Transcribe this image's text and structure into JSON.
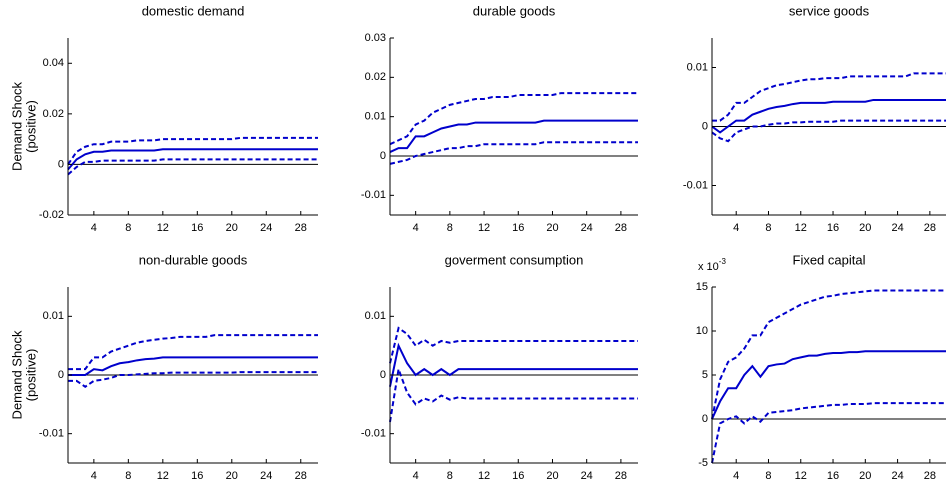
{
  "chart_data": [
    {
      "type": "line",
      "title": "domestic demand",
      "ylabel": [
        "Demand Shock",
        "(positive)"
      ],
      "x": [
        1,
        2,
        3,
        4,
        5,
        6,
        7,
        8,
        9,
        10,
        11,
        12,
        13,
        14,
        15,
        16,
        17,
        18,
        19,
        20,
        21,
        22,
        23,
        24,
        25,
        26,
        27,
        28,
        29,
        30
      ],
      "xlim": [
        1,
        30
      ],
      "xticks": [
        4,
        8,
        12,
        16,
        20,
        24,
        28
      ],
      "ylim": [
        -0.02,
        0.05
      ],
      "yticks": [
        -0.02,
        0,
        0.02,
        0.04
      ],
      "series": [
        {
          "color": "#0000cc",
          "style": "solid",
          "values": [
            -0.002,
            0.002,
            0.004,
            0.005,
            0.005,
            0.0055,
            0.0055,
            0.0055,
            0.0055,
            0.0055,
            0.0055,
            0.006,
            0.006,
            0.006,
            0.006,
            0.006,
            0.006,
            0.006,
            0.006,
            0.006,
            0.006,
            0.006,
            0.006,
            0.006,
            0.006,
            0.006,
            0.006,
            0.006,
            0.006,
            0.006
          ]
        },
        {
          "color": "#0000cc",
          "style": "dashed",
          "values": [
            0,
            0.005,
            0.007,
            0.008,
            0.008,
            0.009,
            0.009,
            0.009,
            0.0095,
            0.0095,
            0.0095,
            0.01,
            0.01,
            0.01,
            0.01,
            0.01,
            0.01,
            0.01,
            0.01,
            0.01,
            0.0105,
            0.0105,
            0.0105,
            0.0105,
            0.0105,
            0.0105,
            0.0105,
            0.0105,
            0.0105,
            0.0105
          ]
        },
        {
          "color": "#0000cc",
          "style": "dashed",
          "values": [
            -0.004,
            -0.001,
            0.001,
            0.001,
            0.0015,
            0.0015,
            0.0015,
            0.0015,
            0.0015,
            0.0015,
            0.0015,
            0.002,
            0.002,
            0.002,
            0.002,
            0.002,
            0.002,
            0.002,
            0.002,
            0.002,
            0.002,
            0.002,
            0.002,
            0.002,
            0.002,
            0.002,
            0.002,
            0.002,
            0.002,
            0.002
          ]
        }
      ]
    },
    {
      "type": "line",
      "title": "durable goods",
      "x": [
        1,
        2,
        3,
        4,
        5,
        6,
        7,
        8,
        9,
        10,
        11,
        12,
        13,
        14,
        15,
        16,
        17,
        18,
        19,
        20,
        21,
        22,
        23,
        24,
        25,
        26,
        27,
        28,
        29,
        30
      ],
      "xlim": [
        1,
        30
      ],
      "xticks": [
        4,
        8,
        12,
        16,
        20,
        24,
        28
      ],
      "ylim": [
        -0.015,
        0.03
      ],
      "yticks": [
        -0.01,
        0,
        0.01,
        0.02,
        0.03
      ],
      "series": [
        {
          "color": "#0000cc",
          "style": "solid",
          "values": [
            0.001,
            0.002,
            0.002,
            0.005,
            0.005,
            0.006,
            0.007,
            0.0075,
            0.008,
            0.008,
            0.0085,
            0.0085,
            0.0085,
            0.0085,
            0.0085,
            0.0085,
            0.0085,
            0.0085,
            0.009,
            0.009,
            0.009,
            0.009,
            0.009,
            0.009,
            0.009,
            0.009,
            0.009,
            0.009,
            0.009,
            0.009
          ]
        },
        {
          "color": "#0000cc",
          "style": "dashed",
          "values": [
            0.003,
            0.004,
            0.005,
            0.008,
            0.009,
            0.011,
            0.012,
            0.013,
            0.0135,
            0.014,
            0.0145,
            0.0145,
            0.015,
            0.015,
            0.015,
            0.0155,
            0.0155,
            0.0155,
            0.0155,
            0.0155,
            0.016,
            0.016,
            0.016,
            0.016,
            0.016,
            0.016,
            0.016,
            0.016,
            0.016,
            0.016
          ]
        },
        {
          "color": "#0000cc",
          "style": "dashed",
          "values": [
            -0.002,
            -0.0015,
            -0.001,
            0,
            0.0005,
            0.001,
            0.0015,
            0.002,
            0.002,
            0.0025,
            0.0025,
            0.003,
            0.003,
            0.003,
            0.003,
            0.003,
            0.003,
            0.003,
            0.0035,
            0.0035,
            0.0035,
            0.0035,
            0.0035,
            0.0035,
            0.0035,
            0.0035,
            0.0035,
            0.0035,
            0.0035,
            0.0035
          ]
        }
      ]
    },
    {
      "type": "line",
      "title": "service goods",
      "x": [
        1,
        2,
        3,
        4,
        5,
        6,
        7,
        8,
        9,
        10,
        11,
        12,
        13,
        14,
        15,
        16,
        17,
        18,
        19,
        20,
        21,
        22,
        23,
        24,
        25,
        26,
        27,
        28,
        29,
        30
      ],
      "xlim": [
        1,
        30
      ],
      "xticks": [
        4,
        8,
        12,
        16,
        20,
        24,
        28
      ],
      "ylim": [
        -0.015,
        0.015
      ],
      "yticks": [
        -0.01,
        0,
        0.01
      ],
      "series": [
        {
          "color": "#0000cc",
          "style": "solid",
          "values": [
            0,
            -0.001,
            0,
            0.001,
            0.001,
            0.002,
            0.0025,
            0.003,
            0.0033,
            0.0035,
            0.0038,
            0.004,
            0.004,
            0.004,
            0.004,
            0.0042,
            0.0042,
            0.0042,
            0.0042,
            0.0042,
            0.0045,
            0.0045,
            0.0045,
            0.0045,
            0.0045,
            0.0045,
            0.0045,
            0.0045,
            0.0045,
            0.0045
          ]
        },
        {
          "color": "#0000cc",
          "style": "dashed",
          "values": [
            0.001,
            0.001,
            0.002,
            0.004,
            0.004,
            0.005,
            0.006,
            0.0065,
            0.007,
            0.0072,
            0.0075,
            0.0078,
            0.008,
            0.008,
            0.0082,
            0.0082,
            0.0082,
            0.0085,
            0.0085,
            0.0085,
            0.0085,
            0.0085,
            0.0085,
            0.0085,
            0.0085,
            0.009,
            0.009,
            0.009,
            0.009,
            0.009
          ]
        },
        {
          "color": "#0000cc",
          "style": "dashed",
          "values": [
            -0.001,
            -0.002,
            -0.0025,
            -0.001,
            -0.0005,
            0,
            0,
            0.0003,
            0.0005,
            0.0005,
            0.0007,
            0.0007,
            0.0008,
            0.0008,
            0.0008,
            0.0008,
            0.001,
            0.001,
            0.001,
            0.001,
            0.001,
            0.001,
            0.001,
            0.001,
            0.001,
            0.001,
            0.001,
            0.001,
            0.001,
            0.001
          ]
        }
      ]
    },
    {
      "type": "line",
      "title": "non-durable goods",
      "ylabel": [
        "Demand Shock",
        "(positive)"
      ],
      "x": [
        1,
        2,
        3,
        4,
        5,
        6,
        7,
        8,
        9,
        10,
        11,
        12,
        13,
        14,
        15,
        16,
        17,
        18,
        19,
        20,
        21,
        22,
        23,
        24,
        25,
        26,
        27,
        28,
        29,
        30
      ],
      "xlim": [
        1,
        30
      ],
      "xticks": [
        4,
        8,
        12,
        16,
        20,
        24,
        28
      ],
      "ylim": [
        -0.015,
        0.015
      ],
      "yticks": [
        -0.01,
        0,
        0.01
      ],
      "series": [
        {
          "color": "#0000cc",
          "style": "solid",
          "values": [
            0,
            0,
            0,
            0.001,
            0.0008,
            0.0015,
            0.002,
            0.0022,
            0.0025,
            0.0027,
            0.0028,
            0.003,
            0.003,
            0.003,
            0.003,
            0.003,
            0.003,
            0.003,
            0.003,
            0.003,
            0.003,
            0.003,
            0.003,
            0.003,
            0.003,
            0.003,
            0.003,
            0.003,
            0.003,
            0.003
          ]
        },
        {
          "color": "#0000cc",
          "style": "dashed",
          "values": [
            0.001,
            0.001,
            0.001,
            0.003,
            0.003,
            0.004,
            0.0045,
            0.005,
            0.0055,
            0.0058,
            0.006,
            0.0062,
            0.0063,
            0.0065,
            0.0065,
            0.0065,
            0.0065,
            0.0068,
            0.0068,
            0.0068,
            0.0068,
            0.0068,
            0.0068,
            0.0068,
            0.0068,
            0.0068,
            0.0068,
            0.0068,
            0.0068,
            0.0068
          ]
        },
        {
          "color": "#0000cc",
          "style": "dashed",
          "values": [
            -0.001,
            -0.001,
            -0.002,
            -0.001,
            -0.0008,
            -0.0005,
            0,
            0,
            0.0001,
            0.0002,
            0.0003,
            0.0003,
            0.0004,
            0.0004,
            0.0004,
            0.0004,
            0.0004,
            0.0004,
            0.0004,
            0.0004,
            0.0005,
            0.0005,
            0.0005,
            0.0005,
            0.0005,
            0.0005,
            0.0005,
            0.0005,
            0.0005,
            0.0005
          ]
        }
      ]
    },
    {
      "type": "line",
      "title": "goverment consumption",
      "x": [
        1,
        2,
        3,
        4,
        5,
        6,
        7,
        8,
        9,
        10,
        11,
        12,
        13,
        14,
        15,
        16,
        17,
        18,
        19,
        20,
        21,
        22,
        23,
        24,
        25,
        26,
        27,
        28,
        29,
        30
      ],
      "xlim": [
        1,
        30
      ],
      "xticks": [
        4,
        8,
        12,
        16,
        20,
        24,
        28
      ],
      "ylim": [
        -0.015,
        0.015
      ],
      "yticks": [
        -0.01,
        0,
        0.01
      ],
      "series": [
        {
          "color": "#0000cc",
          "style": "solid",
          "values": [
            -0.002,
            0.005,
            0.002,
            0,
            0.001,
            0,
            0.001,
            0,
            0.001,
            0.001,
            0.001,
            0.001,
            0.001,
            0.001,
            0.001,
            0.001,
            0.001,
            0.001,
            0.001,
            0.001,
            0.001,
            0.001,
            0.001,
            0.001,
            0.001,
            0.001,
            0.001,
            0.001,
            0.001,
            0.001
          ]
        },
        {
          "color": "#0000cc",
          "style": "dashed",
          "values": [
            0.002,
            0.008,
            0.007,
            0.005,
            0.006,
            0.005,
            0.0058,
            0.0055,
            0.0058,
            0.0058,
            0.0058,
            0.0058,
            0.0058,
            0.0058,
            0.0058,
            0.0058,
            0.0058,
            0.0058,
            0.0058,
            0.0058,
            0.0058,
            0.0058,
            0.0058,
            0.0058,
            0.0058,
            0.0058,
            0.0058,
            0.0058,
            0.0058,
            0.0058
          ]
        },
        {
          "color": "#0000cc",
          "style": "dashed",
          "values": [
            -0.008,
            0.001,
            -0.003,
            -0.005,
            -0.004,
            -0.0045,
            -0.0035,
            -0.0042,
            -0.0038,
            -0.004,
            -0.004,
            -0.004,
            -0.004,
            -0.004,
            -0.004,
            -0.004,
            -0.004,
            -0.004,
            -0.004,
            -0.004,
            -0.004,
            -0.004,
            -0.004,
            -0.004,
            -0.004,
            -0.004,
            -0.004,
            -0.004,
            -0.004,
            -0.004
          ]
        }
      ]
    },
    {
      "type": "line",
      "title": "Fixed capital",
      "y_multiplier": "x 10",
      "y_multiplier_exponent": "-3",
      "x": [
        1,
        2,
        3,
        4,
        5,
        6,
        7,
        8,
        9,
        10,
        11,
        12,
        13,
        14,
        15,
        16,
        17,
        18,
        19,
        20,
        21,
        22,
        23,
        24,
        25,
        26,
        27,
        28,
        29,
        30
      ],
      "xlim": [
        1,
        30
      ],
      "xticks": [
        4,
        8,
        12,
        16,
        20,
        24,
        28
      ],
      "ylim": [
        -5,
        15
      ],
      "yticks": [
        -5,
        0,
        5,
        10,
        15
      ],
      "series": [
        {
          "color": "#0000cc",
          "style": "solid",
          "values": [
            0,
            2,
            3.5,
            3.5,
            5,
            6,
            4.8,
            6,
            6.2,
            6.3,
            6.8,
            7,
            7.2,
            7.2,
            7.4,
            7.5,
            7.5,
            7.6,
            7.6,
            7.7,
            7.7,
            7.7,
            7.7,
            7.7,
            7.7,
            7.7,
            7.7,
            7.7,
            7.7,
            7.7
          ]
        },
        {
          "color": "#0000cc",
          "style": "dashed",
          "values": [
            0,
            4.5,
            6.5,
            7,
            8,
            9.5,
            9.5,
            11,
            11.5,
            12,
            12.5,
            13,
            13.3,
            13.6,
            13.9,
            14,
            14.2,
            14.3,
            14.4,
            14.5,
            14.6,
            14.6,
            14.6,
            14.6,
            14.6,
            14.6,
            14.6,
            14.6,
            14.6,
            14.6
          ]
        },
        {
          "color": "#0000cc",
          "style": "dashed",
          "values": [
            -5,
            -0.5,
            0,
            0.3,
            -0.5,
            0.3,
            -0.3,
            0.7,
            0.8,
            0.9,
            1,
            1.2,
            1.3,
            1.4,
            1.5,
            1.6,
            1.6,
            1.7,
            1.7,
            1.7,
            1.8,
            1.8,
            1.8,
            1.8,
            1.8,
            1.8,
            1.8,
            1.8,
            1.8,
            1.8
          ]
        }
      ]
    }
  ]
}
